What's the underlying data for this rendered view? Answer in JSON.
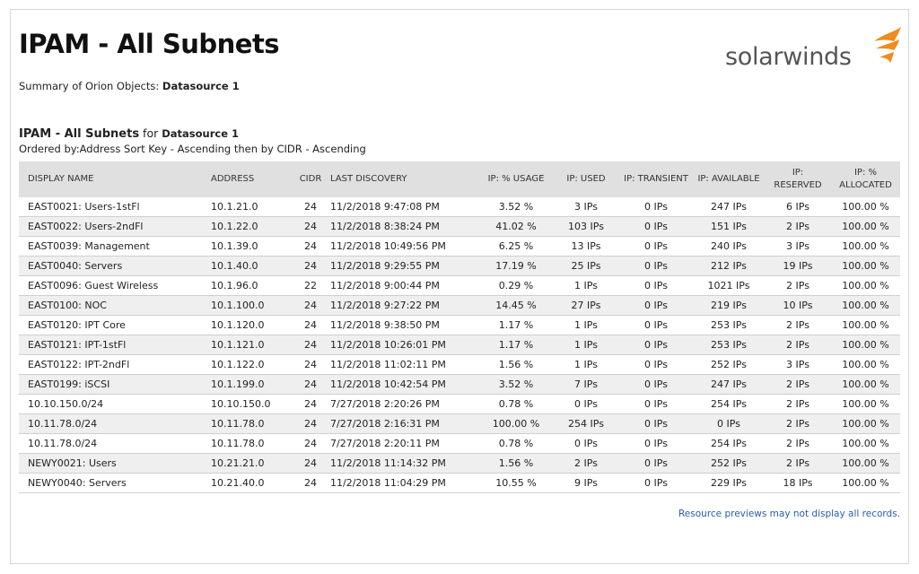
{
  "header": {
    "title": "IPAM - All Subnets",
    "summary_label": "Summary of Orion Objects:",
    "summary_value": "Datasource 1",
    "logo_text": "solarwinds",
    "logo_color": "#f08b1d"
  },
  "report": {
    "title": "IPAM - All Subnets",
    "for_label": "for",
    "datasource": "Datasource 1",
    "ordered_by": "Ordered by:Address Sort Key - Ascending then by CIDR - Ascending"
  },
  "table": {
    "columns": [
      "DISPLAY NAME",
      "ADDRESS",
      "CIDR",
      "LAST DISCOVERY",
      "IP: % USAGE",
      "IP: USED",
      "IP: TRANSIENT",
      "IP: AVAILABLE",
      "IP: RESERVED",
      "IP: % ALLOCATED"
    ],
    "rows": [
      [
        "EAST0021: Users-1stFl",
        "10.1.21.0",
        "24",
        "11/2/2018 9:47:08 PM",
        "3.52 %",
        "3 IPs",
        "0 IPs",
        "247 IPs",
        "6 IPs",
        "100.00 %"
      ],
      [
        "EAST0022: Users-2ndFl",
        "10.1.22.0",
        "24",
        "11/2/2018 8:38:24 PM",
        "41.02 %",
        "103 IPs",
        "0 IPs",
        "151 IPs",
        "2 IPs",
        "100.00 %"
      ],
      [
        "EAST0039: Management",
        "10.1.39.0",
        "24",
        "11/2/2018 10:49:56 PM",
        "6.25 %",
        "13 IPs",
        "0 IPs",
        "240 IPs",
        "3 IPs",
        "100.00 %"
      ],
      [
        "EAST0040: Servers",
        "10.1.40.0",
        "24",
        "11/2/2018 9:29:55 PM",
        "17.19 %",
        "25 IPs",
        "0 IPs",
        "212 IPs",
        "19 IPs",
        "100.00 %"
      ],
      [
        "EAST0096: Guest Wireless",
        "10.1.96.0",
        "22",
        "11/2/2018 9:00:44 PM",
        "0.29 %",
        "1 IPs",
        "0 IPs",
        "1021 IPs",
        "2 IPs",
        "100.00 %"
      ],
      [
        "EAST0100: NOC",
        "10.1.100.0",
        "24",
        "11/2/2018 9:27:22 PM",
        "14.45 %",
        "27 IPs",
        "0 IPs",
        "219 IPs",
        "10 IPs",
        "100.00 %"
      ],
      [
        "EAST0120: IPT Core",
        "10.1.120.0",
        "24",
        "11/2/2018 9:38:50 PM",
        "1.17 %",
        "1 IPs",
        "0 IPs",
        "253 IPs",
        "2 IPs",
        "100.00 %"
      ],
      [
        "EAST0121: IPT-1stFl",
        "10.1.121.0",
        "24",
        "11/2/2018 10:26:01 PM",
        "1.17 %",
        "1 IPs",
        "0 IPs",
        "253 IPs",
        "2 IPs",
        "100.00 %"
      ],
      [
        "EAST0122: IPT-2ndFl",
        "10.1.122.0",
        "24",
        "11/2/2018 11:02:11 PM",
        "1.56 %",
        "1 IPs",
        "0 IPs",
        "252 IPs",
        "3 IPs",
        "100.00 %"
      ],
      [
        "EAST0199: iSCSI",
        "10.1.199.0",
        "24",
        "11/2/2018 10:42:54 PM",
        "3.52 %",
        "7 IPs",
        "0 IPs",
        "247 IPs",
        "2 IPs",
        "100.00 %"
      ],
      [
        "10.10.150.0/24",
        "10.10.150.0",
        "24",
        "7/27/2018 2:20:26 PM",
        "0.78 %",
        "0 IPs",
        "0 IPs",
        "254 IPs",
        "2 IPs",
        "100.00 %"
      ],
      [
        "10.11.78.0/24",
        "10.11.78.0",
        "24",
        "7/27/2018 2:16:31 PM",
        "100.00 %",
        "254 IPs",
        "0 IPs",
        "0 IPs",
        "2 IPs",
        "100.00 %"
      ],
      [
        "10.11.78.0/24",
        "10.11.78.0",
        "24",
        "7/27/2018 2:20:11 PM",
        "0.78 %",
        "0 IPs",
        "0 IPs",
        "254 IPs",
        "2 IPs",
        "100.00 %"
      ],
      [
        "NEWY0021: Users",
        "10.21.21.0",
        "24",
        "11/2/2018 11:14:32 PM",
        "1.56 %",
        "2 IPs",
        "0 IPs",
        "252 IPs",
        "2 IPs",
        "100.00 %"
      ],
      [
        "NEWY0040: Servers",
        "10.21.40.0",
        "24",
        "11/2/2018 11:04:29 PM",
        "10.55 %",
        "9 IPs",
        "0 IPs",
        "229 IPs",
        "18 IPs",
        "100.00 %"
      ]
    ]
  },
  "footer": {
    "note": "Resource previews may not display all records."
  }
}
